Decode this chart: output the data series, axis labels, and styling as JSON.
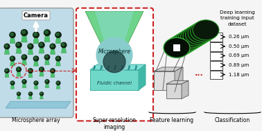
{
  "bg_color": "#f5f5f5",
  "panel1": {
    "label": "Microsphere array",
    "camera_text": "Camera",
    "bg": "#c0dce8",
    "platform_color": "#90c8d8",
    "sphere_dark": "#112211",
    "cone_light": "#40c060",
    "cone_dark": "#28883a"
  },
  "panel2": {
    "label": "Super-resolution\nimaging",
    "border_color": "#cc2222",
    "microsphere_text": "Microsphere",
    "fluidic_text": "Fluidic channel",
    "cone_outer": "#55cc77",
    "cone_inner": "#88ddcc",
    "sphere_color": "#88cccc",
    "channel_color": "#80e0d8",
    "channel_edge": "#40b0a0"
  },
  "panel3": {
    "label": "Feature learning",
    "stack_dark": "#0a1a0a",
    "stack_green": "#2aaa2a"
  },
  "panel4": {
    "label": "Classification",
    "header": "Deep learning\ntraining input\ndataset",
    "sizes": [
      "0.26 μm",
      "0.50 μm",
      "0.69 μm",
      "0.89 μm",
      "1.18 μm"
    ]
  },
  "red_color": "#cc2222"
}
